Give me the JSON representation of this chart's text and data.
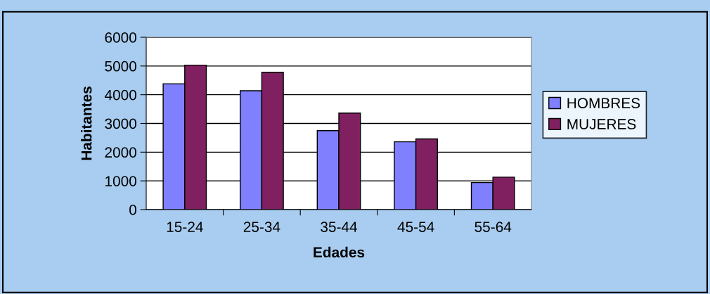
{
  "chart_data": {
    "type": "bar",
    "xlabel": "Edades",
    "ylabel": "Habitantes",
    "categories": [
      "15-24",
      "25-34",
      "35-44",
      "45-54",
      "55-64"
    ],
    "series": [
      {
        "name": "HOMBRES",
        "color": "#8080ff",
        "values": [
          4380,
          4140,
          2750,
          2360,
          940
        ]
      },
      {
        "name": "MUJERES",
        "color": "#802060",
        "values": [
          5030,
          4780,
          3360,
          2460,
          1130
        ]
      }
    ],
    "ylim": [
      0,
      6000
    ],
    "yticks": [
      0,
      1000,
      2000,
      3000,
      4000,
      5000,
      6000
    ],
    "grid": "y",
    "legend": "right"
  }
}
